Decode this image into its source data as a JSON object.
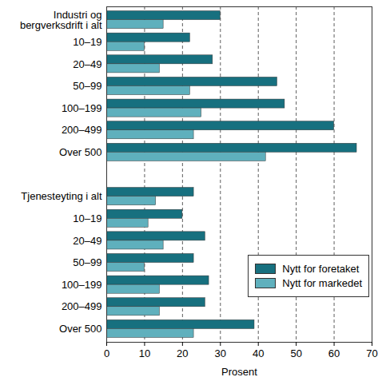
{
  "chart_data": {
    "type": "bar",
    "orientation": "horizontal",
    "categories": [
      "Industri og\nbergverksdrift i alt",
      "10–19",
      "20–49",
      "50–99",
      "100–199",
      "200–499",
      "Over 500",
      null,
      "Tjenesteyting i alt",
      "10–19",
      "20–49",
      "50–99",
      "100–199",
      "200–499",
      "Over 500"
    ],
    "series": [
      {
        "name": "Nytt for foretaket",
        "color": "#17707f",
        "values": [
          30,
          22,
          28,
          45,
          47,
          60,
          66,
          null,
          23,
          20,
          26,
          23,
          27,
          26,
          39
        ]
      },
      {
        "name": "Nytt for markedet",
        "color": "#5fb0bd",
        "values": [
          15,
          10,
          14,
          22,
          25,
          23,
          42,
          null,
          13,
          11,
          15,
          10,
          14,
          14,
          23
        ]
      }
    ],
    "xlabel": "Prosent",
    "xlim": [
      0,
      70
    ],
    "xticks": [
      0,
      10,
      20,
      30,
      40,
      50,
      60,
      70
    ],
    "grid": true,
    "legend": "bottom-right"
  }
}
